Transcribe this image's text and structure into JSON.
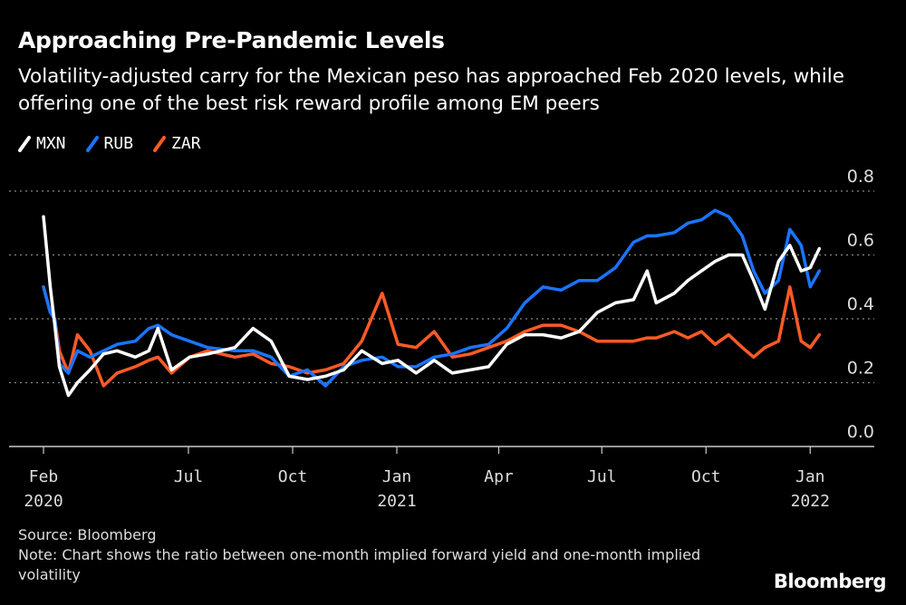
{
  "header": {
    "title": "Approaching Pre-Pandemic Levels",
    "subtitle": "Volatility-adjusted carry for the Mexican peso has approached Feb 2020 levels, while offering one of the best risk reward profile among EM peers"
  },
  "footer": {
    "source": "Source: Bloomberg",
    "note": "Note: Chart shows the ratio between one-month implied forward yield and one-month implied volatility",
    "logo": "Bloomberg"
  },
  "chart_data": {
    "type": "line",
    "title": "Approaching Pre-Pandemic Levels",
    "xlabel": "",
    "ylabel": "",
    "ylim": [
      0,
      0.8
    ],
    "yticks": [
      "0.0",
      "0.2",
      "0.4",
      "0.6",
      "0.8"
    ],
    "grid": true,
    "legend_position": "top-left",
    "xticks": [
      {
        "date": "2020-02-24",
        "label": "Feb",
        "year": "2020"
      },
      {
        "date": "2020-07-01",
        "label": "Jul",
        "year": ""
      },
      {
        "date": "2020-10-01",
        "label": "Oct",
        "year": ""
      },
      {
        "date": "2021-01-01",
        "label": "Jan",
        "year": "2021"
      },
      {
        "date": "2021-04-01",
        "label": "Apr",
        "year": ""
      },
      {
        "date": "2021-07-01",
        "label": "Jul",
        "year": ""
      },
      {
        "date": "2021-10-01",
        "label": "Oct",
        "year": ""
      },
      {
        "date": "2022-01-01",
        "label": "Jan",
        "year": "2022"
      }
    ],
    "x": [
      "2020-02-24",
      "2020-03-01",
      "2020-03-05",
      "2020-03-09",
      "2020-03-17",
      "2020-03-25",
      "2020-04-05",
      "2020-04-17",
      "2020-04-29",
      "2020-05-15",
      "2020-05-27",
      "2020-06-04",
      "2020-06-16",
      "2020-07-02",
      "2020-07-18",
      "2020-08-11",
      "2020-08-27",
      "2020-09-12",
      "2020-09-28",
      "2020-10-14",
      "2020-10-30",
      "2020-11-15",
      "2020-12-01",
      "2020-12-19",
      "2021-01-02",
      "2021-01-18",
      "2021-02-03",
      "2021-02-19",
      "2021-03-07",
      "2021-03-23",
      "2021-04-08",
      "2021-04-24",
      "2021-05-10",
      "2021-05-26",
      "2021-06-11",
      "2021-06-27",
      "2021-07-13",
      "2021-07-29",
      "2021-08-10",
      "2021-08-18",
      "2021-09-03",
      "2021-09-15",
      "2021-09-27",
      "2021-10-09",
      "2021-10-21",
      "2021-11-02",
      "2021-11-12",
      "2021-11-22",
      "2021-12-04",
      "2021-12-14",
      "2021-12-24",
      "2022-01-01",
      "2022-01-09"
    ],
    "series": [
      {
        "name": "MXN",
        "color": "#ffffff",
        "values": [
          0.72,
          0.5,
          0.38,
          0.25,
          0.16,
          0.2,
          0.24,
          0.29,
          0.3,
          0.28,
          0.3,
          0.37,
          0.24,
          0.28,
          0.29,
          0.31,
          0.37,
          0.33,
          0.22,
          0.21,
          0.22,
          0.24,
          0.3,
          0.26,
          0.27,
          0.23,
          0.27,
          0.23,
          0.24,
          0.25,
          0.32,
          0.35,
          0.35,
          0.34,
          0.36,
          0.42,
          0.45,
          0.46,
          0.55,
          0.45,
          0.48,
          0.52,
          0.55,
          0.58,
          0.6,
          0.6,
          0.52,
          0.43,
          0.58,
          0.63,
          0.55,
          0.56,
          0.62
        ]
      },
      {
        "name": "RUB",
        "color": "#1a74ff",
        "values": [
          0.5,
          0.42,
          0.4,
          0.26,
          0.23,
          0.3,
          0.28,
          0.3,
          0.32,
          0.33,
          0.37,
          0.38,
          0.35,
          0.33,
          0.31,
          0.3,
          0.3,
          0.28,
          0.22,
          0.24,
          0.19,
          0.25,
          0.27,
          0.28,
          0.25,
          0.25,
          0.28,
          0.29,
          0.31,
          0.32,
          0.37,
          0.45,
          0.5,
          0.49,
          0.52,
          0.52,
          0.56,
          0.64,
          0.66,
          0.66,
          0.67,
          0.7,
          0.71,
          0.74,
          0.72,
          0.66,
          0.55,
          0.48,
          0.52,
          0.68,
          0.63,
          0.5,
          0.55
        ]
      },
      {
        "name": "ZAR",
        "color": "#ff5a26",
        "values": [
          0.5,
          0.42,
          0.4,
          0.3,
          0.23,
          0.35,
          0.3,
          0.19,
          0.23,
          0.25,
          0.27,
          0.28,
          0.23,
          0.28,
          0.3,
          0.28,
          0.29,
          0.26,
          0.25,
          0.23,
          0.24,
          0.26,
          0.33,
          0.48,
          0.32,
          0.31,
          0.36,
          0.28,
          0.29,
          0.31,
          0.33,
          0.36,
          0.38,
          0.38,
          0.36,
          0.33,
          0.33,
          0.33,
          0.34,
          0.34,
          0.36,
          0.34,
          0.36,
          0.32,
          0.35,
          0.31,
          0.28,
          0.31,
          0.33,
          0.5,
          0.33,
          0.31,
          0.35
        ]
      }
    ]
  }
}
